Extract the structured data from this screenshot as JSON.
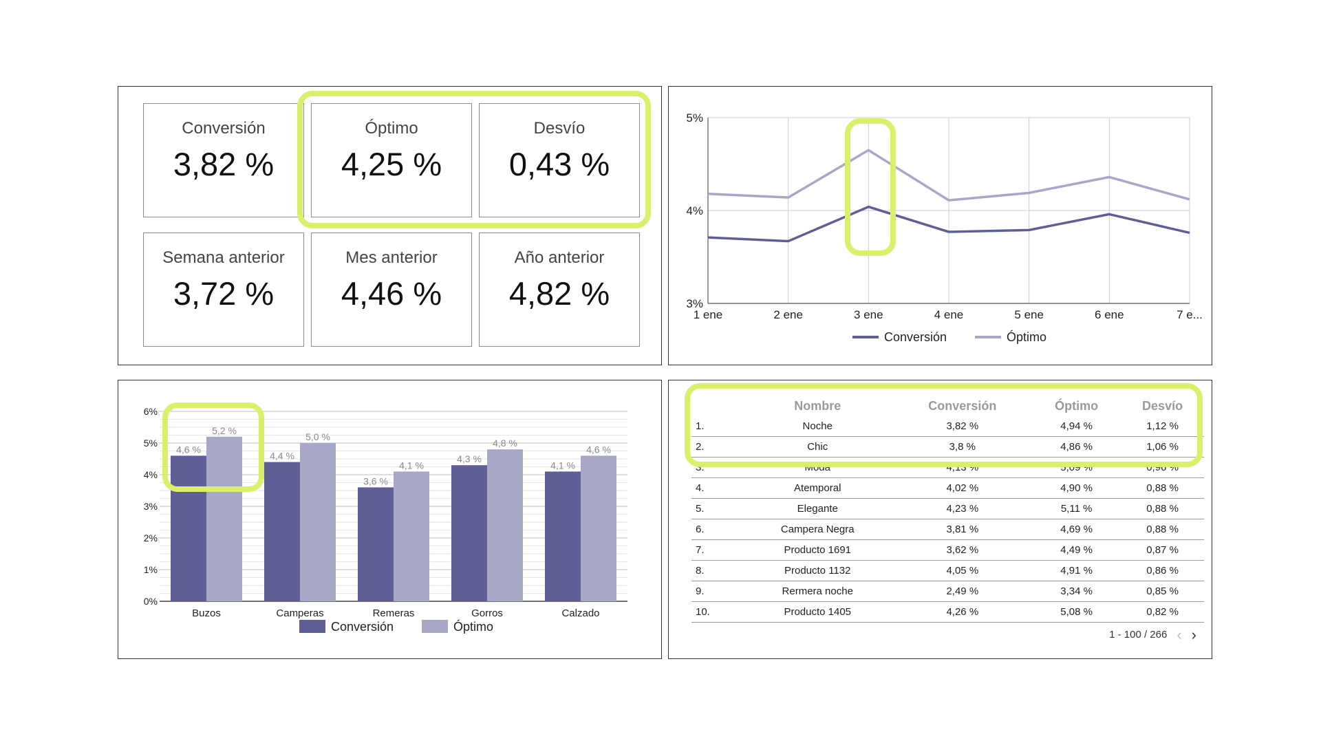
{
  "kpis": [
    {
      "label": "Conversión",
      "value": "3,82 %"
    },
    {
      "label": "Óptimo",
      "value": "4,25 %"
    },
    {
      "label": "Desvío",
      "value": "0,43 %"
    },
    {
      "label": "Semana anterior",
      "value": "3,72 %"
    },
    {
      "label": "Mes anterior",
      "value": "4,46 %"
    },
    {
      "label": "Año anterior",
      "value": "4,82 %"
    }
  ],
  "colors": {
    "conversion": "#5f5f96",
    "optimo": "#a7a7c8",
    "highlight": "#dbf06a"
  },
  "chart_data": [
    {
      "type": "line",
      "x": [
        "1 ene",
        "2 ene",
        "3 ene",
        "4 ene",
        "5 ene",
        "6 ene",
        "7 e..."
      ],
      "ylim": [
        3,
        5
      ],
      "yticks": [
        "5%",
        "4%",
        "3%"
      ],
      "series": [
        {
          "name": "Conversión",
          "values": [
            3.71,
            3.67,
            4.04,
            3.77,
            3.79,
            3.96,
            3.76
          ]
        },
        {
          "name": "Óptimo",
          "values": [
            4.18,
            4.14,
            4.65,
            4.11,
            4.19,
            4.36,
            4.12
          ]
        }
      ],
      "legend": "bottom"
    },
    {
      "type": "bar",
      "categories": [
        "Buzos",
        "Camperas",
        "Remeras",
        "Gorros",
        "Calzado"
      ],
      "ylim": [
        0,
        6
      ],
      "yticks": [
        "0%",
        "1%",
        "2%",
        "3%",
        "4%",
        "5%",
        "6%"
      ],
      "series": [
        {
          "name": "Conversión",
          "values": [
            4.6,
            4.4,
            3.6,
            4.3,
            4.1
          ],
          "labels": [
            "4,6 %",
            "4,4 %",
            "3,6 %",
            "4,3 %",
            "4,1 %"
          ]
        },
        {
          "name": "Óptimo",
          "values": [
            5.2,
            5.0,
            4.1,
            4.8,
            4.6
          ],
          "labels": [
            "5,2 %",
            "5,0 %",
            "4,1 %",
            "4,8 %",
            "4,6 %"
          ]
        }
      ],
      "legend": "bottom"
    },
    {
      "type": "table",
      "columns": [
        "Nombre",
        "Conversión",
        "Óptimo",
        "Desvío"
      ],
      "rows": [
        [
          "1.",
          "Noche",
          "3,82 %",
          "4,94 %",
          "1,12 %"
        ],
        [
          "2.",
          "Chic",
          "3,8 %",
          "4,86 %",
          "1,06 %"
        ],
        [
          "3.",
          "Moda",
          "4,13 %",
          "5,09 %",
          "0,96 %"
        ],
        [
          "4.",
          "Atemporal",
          "4,02 %",
          "4,90 %",
          "0,88 %"
        ],
        [
          "5.",
          "Elegante",
          "4,23 %",
          "5,11 %",
          "0,88 %"
        ],
        [
          "6.",
          "Campera Negra",
          "3,81 %",
          "4,69 %",
          "0,88 %"
        ],
        [
          "7.",
          "Producto 1691",
          "3,62 %",
          "4,49 %",
          "0,87 %"
        ],
        [
          "8.",
          "Producto 1132",
          "4,05 %",
          "4,91 %",
          "0,86 %"
        ],
        [
          "9.",
          "Rermera noche",
          "2,49 %",
          "3,34 %",
          "0,85 %"
        ],
        [
          "10.",
          "Producto 1405",
          "4,26 %",
          "5,08 %",
          "0,82 %"
        ]
      ],
      "pagination": "1 - 100 / 266"
    }
  ]
}
